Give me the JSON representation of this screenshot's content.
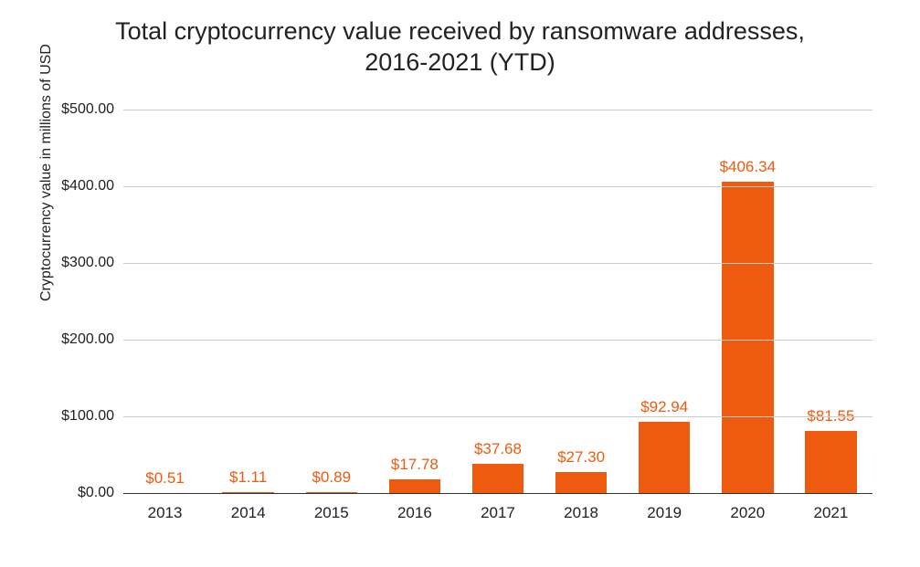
{
  "chart": {
    "type": "bar",
    "title": "Total cryptocurrency value received by ransomware addresses,\n2016-2021 (YTD)",
    "title_fontsize": 27,
    "title_color": "#222222",
    "yaxis_title": "Cryptocurrency value in millions of USD",
    "yaxis_title_fontsize": 16,
    "background_color": "#ffffff",
    "grid_color": "#cccccc",
    "axis_color": "#333333",
    "value_label_color": "#ee5b0e",
    "value_label_fontsize": 17,
    "xtick_fontsize": 17,
    "xtick_color": "#222222",
    "ytick_fontsize": 16,
    "ytick_color": "#222222",
    "bar_color": "#ee5b0e",
    "bar_width": 0.62,
    "ylim": [
      0,
      500
    ],
    "ytick_step": 100,
    "yticks": [
      {
        "value": 0,
        "label": "$0.00"
      },
      {
        "value": 100,
        "label": "$100.00"
      },
      {
        "value": 200,
        "label": "$200.00"
      },
      {
        "value": 300,
        "label": "$300.00"
      },
      {
        "value": 400,
        "label": "$400.00"
      },
      {
        "value": 500,
        "label": "$500.00"
      }
    ],
    "categories": [
      "2013",
      "2014",
      "2015",
      "2016",
      "2017",
      "2018",
      "2019",
      "2020",
      "2021"
    ],
    "values": [
      0.51,
      1.11,
      0.89,
      17.78,
      37.68,
      27.3,
      92.94,
      406.34,
      81.55
    ],
    "value_labels": [
      "$0.51",
      "$1.11",
      "$0.89",
      "$17.78",
      "$37.68",
      "$27.30",
      "$92.94",
      "$406.34",
      "$81.55"
    ]
  }
}
